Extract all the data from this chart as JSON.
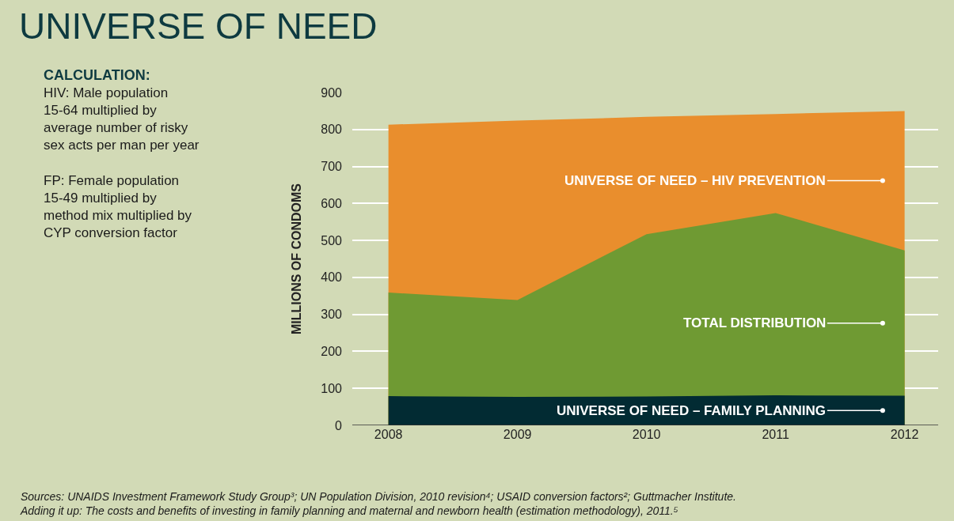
{
  "chart_data": {
    "type": "area",
    "title": "UNIVERSE OF NEED",
    "ylabel": "MILLIONS OF CONDOMS",
    "categories": [
      "2008",
      "2009",
      "2010",
      "2011",
      "2012"
    ],
    "series": [
      {
        "name": "UNIVERSE OF NEED – HIV PREVENTION",
        "color": "#e98e2d",
        "values": [
          813,
          824,
          834,
          842,
          850
        ]
      },
      {
        "name": "TOTAL DISTRIBUTION",
        "color": "#6f9a33",
        "values": [
          359,
          339,
          517,
          574,
          473
        ]
      },
      {
        "name": "UNIVERSE OF NEED – FAMILY PLANNING",
        "color": "#022b33",
        "values": [
          79,
          77,
          78,
          81,
          80
        ]
      }
    ],
    "ylim": [
      0,
      900
    ],
    "yticks": [
      0,
      100,
      200,
      300,
      400,
      500,
      600,
      700,
      800,
      900
    ],
    "grid": "y",
    "legend": false,
    "annotations": [
      "CALCULATION:",
      "HIV: Male population\n15-64 multiplied by\naverage number of risky\nsex acts per man per year\n\nFP: Female population\n15-49 multiplied by\nmethod mix multiplied by\nCYP conversion factor",
      "Sources: UNAIDS Investment Framework Study Group³; UN Population Division, 2010 revision⁴; USAID conversion factors²; Guttmacher Institute.\nAdding it up: The costs and benefits of investing in family planning and maternal and newborn health (estimation methodology), 2011.⁵"
    ]
  }
}
